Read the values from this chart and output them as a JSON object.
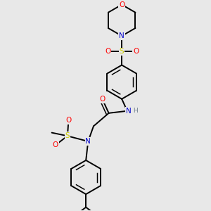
{
  "bg_color": "#e8e8e8",
  "atom_colors": {
    "O": "#ff0000",
    "N": "#0000cc",
    "S": "#cccc00",
    "C": "#000000",
    "H": "#708090"
  },
  "bond_color": "#000000",
  "bond_width": 1.4
}
